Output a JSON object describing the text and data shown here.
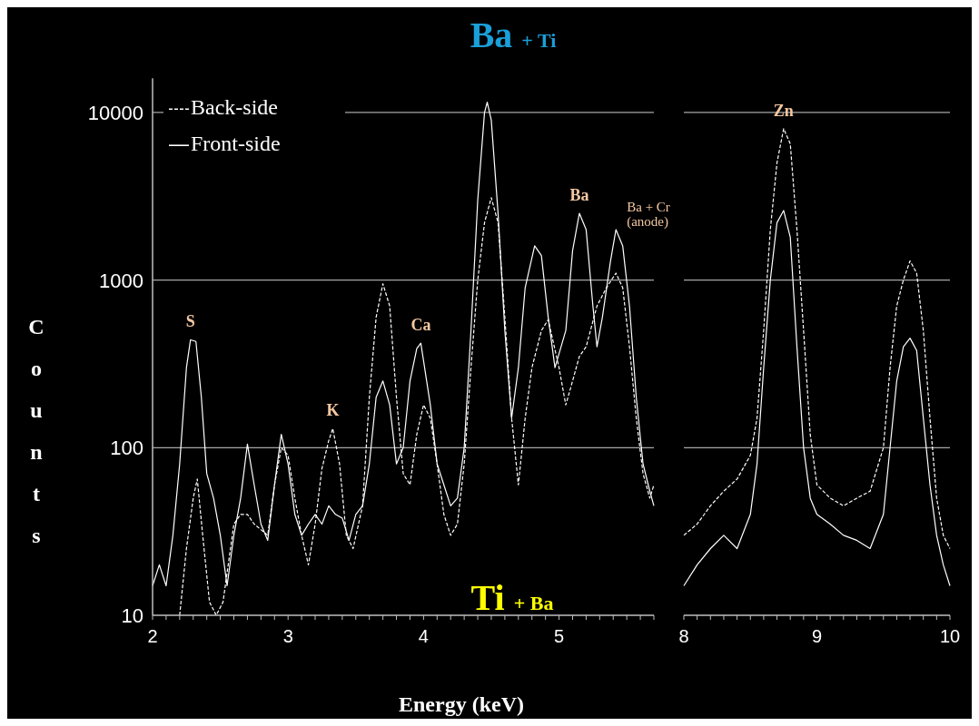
{
  "chart_data": [
    {
      "type": "line",
      "xlabel": "Energy (keV)",
      "ylabel": "Counts",
      "log": "y",
      "grid": "y",
      "legend": "top left",
      "xlim": [
        2,
        5.7
      ],
      "xticks": [
        2,
        3,
        4,
        5
      ],
      "ylim": [
        10,
        16000
      ],
      "yticks": [
        10,
        100,
        1000,
        10000
      ],
      "annotations": [
        "Ba + Ti",
        "Ti + Ba",
        {
          "text": "S",
          "x": 2.28,
          "y": 440
        },
        {
          "text": "K",
          "x": 3.33,
          "y": 130
        },
        {
          "text": "Ca",
          "x": 3.98,
          "y": 420
        },
        {
          "text": "Ba",
          "x": 5.15,
          "y": 2500
        },
        {
          "text": "Ba + Cr (anode)",
          "x": 5.42,
          "y": 2000
        }
      ],
      "series": [
        {
          "name": "Back-side",
          "color": "#ffffff",
          "line_style": "dashed",
          "x": [
            2.2,
            2.25,
            2.3,
            2.33,
            2.37,
            2.42,
            2.47,
            2.52,
            2.6,
            2.65,
            2.7,
            2.75,
            2.85,
            2.9,
            2.95,
            3.0,
            3.05,
            3.1,
            3.15,
            3.2,
            3.25,
            3.3,
            3.33,
            3.38,
            3.43,
            3.48,
            3.55,
            3.6,
            3.65,
            3.7,
            3.75,
            3.8,
            3.85,
            3.9,
            3.95,
            4.0,
            4.05,
            4.1,
            4.15,
            4.2,
            4.25,
            4.3,
            4.35,
            4.4,
            4.45,
            4.5,
            4.55,
            4.6,
            4.65,
            4.7,
            4.75,
            4.8,
            4.87,
            4.92,
            5.0,
            5.05,
            5.1,
            5.15,
            5.2,
            5.28,
            5.35,
            5.42,
            5.47,
            5.52,
            5.57,
            5.62,
            5.67,
            5.7
          ],
          "values": [
            10,
            25,
            50,
            65,
            30,
            12,
            10,
            12,
            35,
            40,
            40,
            35,
            30,
            60,
            100,
            90,
            50,
            30,
            20,
            35,
            75,
            110,
            130,
            80,
            30,
            25,
            45,
            200,
            600,
            950,
            700,
            200,
            70,
            60,
            120,
            180,
            150,
            80,
            40,
            30,
            35,
            80,
            300,
            1000,
            2200,
            3100,
            2200,
            600,
            150,
            60,
            150,
            300,
            500,
            580,
            300,
            180,
            250,
            350,
            400,
            700,
            900,
            1100,
            900,
            400,
            150,
            70,
            50,
            60
          ]
        },
        {
          "name": "Front-side",
          "color": "#ffffff",
          "line_style": "solid",
          "x": [
            2.0,
            2.05,
            2.1,
            2.15,
            2.2,
            2.25,
            2.28,
            2.32,
            2.36,
            2.4,
            2.45,
            2.5,
            2.55,
            2.6,
            2.65,
            2.7,
            2.75,
            2.8,
            2.85,
            2.9,
            2.95,
            3.0,
            3.05,
            3.1,
            3.15,
            3.2,
            3.25,
            3.3,
            3.35,
            3.4,
            3.45,
            3.5,
            3.55,
            3.6,
            3.65,
            3.7,
            3.75,
            3.8,
            3.85,
            3.9,
            3.95,
            3.98,
            4.05,
            4.1,
            4.15,
            4.2,
            4.25,
            4.3,
            4.35,
            4.4,
            4.45,
            4.47,
            4.5,
            4.55,
            4.6,
            4.65,
            4.7,
            4.75,
            4.82,
            4.87,
            4.92,
            4.97,
            5.05,
            5.1,
            5.15,
            5.2,
            5.25,
            5.28,
            5.32,
            5.38,
            5.42,
            5.47,
            5.52,
            5.57,
            5.62,
            5.67,
            5.7
          ],
          "values": [
            15,
            20,
            15,
            30,
            80,
            300,
            440,
            430,
            200,
            70,
            50,
            30,
            15,
            30,
            50,
            105,
            60,
            35,
            28,
            60,
            120,
            80,
            40,
            30,
            35,
            40,
            35,
            45,
            40,
            38,
            28,
            40,
            45,
            80,
            200,
            250,
            180,
            80,
            100,
            250,
            390,
            420,
            180,
            80,
            60,
            45,
            50,
            100,
            500,
            3000,
            10000,
            11500,
            9000,
            2500,
            500,
            150,
            300,
            900,
            1600,
            1400,
            600,
            300,
            500,
            1500,
            2500,
            2000,
            700,
            400,
            600,
            1300,
            2000,
            1600,
            700,
            200,
            80,
            55,
            45
          ]
        }
      ]
    },
    {
      "type": "line",
      "log": "y",
      "grid": "y",
      "tick_labels": "x",
      "xlim": [
        8,
        10
      ],
      "xticks": [
        8,
        9,
        10
      ],
      "ylim": [
        10,
        10000
      ],
      "yticks": [
        10,
        100,
        1000,
        10000
      ],
      "annotations": [
        {
          "text": "Zn",
          "x": 8.75,
          "y": 8000
        }
      ],
      "series": [
        {
          "color": "#ffffff",
          "line_style": "dashed",
          "x": [
            8.0,
            8.1,
            8.2,
            8.3,
            8.4,
            8.5,
            8.55,
            8.6,
            8.65,
            8.7,
            8.75,
            8.8,
            8.85,
            8.9,
            8.95,
            9.0,
            9.1,
            9.2,
            9.3,
            9.4,
            9.5,
            9.55,
            9.6,
            9.65,
            9.7,
            9.75,
            9.8,
            9.85,
            9.9,
            9.95,
            10.0
          ],
          "values": [
            30,
            35,
            45,
            55,
            65,
            90,
            150,
            500,
            2000,
            5000,
            8000,
            6500,
            2000,
            500,
            120,
            60,
            50,
            45,
            50,
            55,
            100,
            300,
            700,
            1000,
            1300,
            1100,
            500,
            150,
            50,
            30,
            25
          ]
        },
        {
          "color": "#ffffff",
          "line_style": "solid",
          "x": [
            8.0,
            8.1,
            8.2,
            8.3,
            8.4,
            8.5,
            8.55,
            8.6,
            8.65,
            8.7,
            8.75,
            8.8,
            8.85,
            8.9,
            8.95,
            9.0,
            9.1,
            9.2,
            9.3,
            9.4,
            9.5,
            9.55,
            9.6,
            9.65,
            9.7,
            9.75,
            9.8,
            9.85,
            9.9,
            9.95,
            10.0
          ],
          "values": [
            15,
            20,
            25,
            30,
            25,
            40,
            80,
            300,
            1000,
            2200,
            2600,
            1800,
            400,
            100,
            50,
            40,
            35,
            30,
            28,
            25,
            40,
            100,
            250,
            400,
            450,
            380,
            150,
            60,
            30,
            20,
            15
          ]
        }
      ]
    }
  ]
}
